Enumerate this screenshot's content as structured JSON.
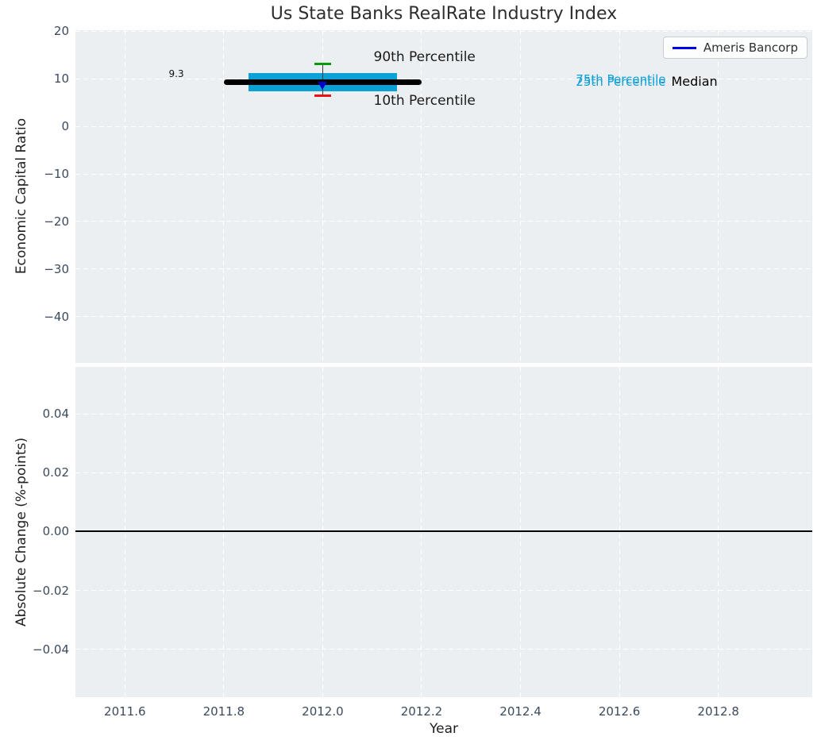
{
  "figure": {
    "title": "Us State Banks RealRate Industry Index",
    "background": "#ffffff",
    "axes_background": "#eceff1",
    "grid_color": "#ffffff",
    "tick_color": "#3b4a5c"
  },
  "legend": {
    "label": "Ameris Bancorp",
    "line_color": "#0000e6",
    "position": "upper right"
  },
  "chart_data": [
    {
      "type": "boxplot",
      "title": "Us State Banks RealRate Industry Index",
      "ylabel": "Economic Capital Ratio",
      "xlabel": "",
      "grid": true,
      "xlim": [
        2011.5,
        2012.99
      ],
      "ylim": [
        -49.7,
        20.2
      ],
      "xticks": {
        "values": [
          2011.6,
          2011.8,
          2012.0,
          2012.2,
          2012.4,
          2012.6,
          2012.8
        ],
        "labels": [
          "2011.6",
          "2011.8",
          "2012.0",
          "2012.2",
          "2012.4",
          "2012.6",
          "2012.8"
        ],
        "labels_visible": false
      },
      "yticks": {
        "values": [
          20,
          10,
          0,
          -10,
          -20,
          -30,
          -40
        ],
        "labels": [
          "20",
          "10",
          "0",
          "−10",
          "−20",
          "−30",
          "−40"
        ]
      },
      "box": {
        "x": 2012.0,
        "median": 9.3,
        "q1": 7.3,
        "q3": 11.2,
        "p10": 6.5,
        "p90": 13.1,
        "box_x_start": 2011.85,
        "box_x_end": 2012.15,
        "median_x_start": 2011.8,
        "median_x_end": 2012.2,
        "cap_half_width": 0.017,
        "box_color": "#0aa1d7",
        "median_color": "#000000",
        "median_linewidth": 7,
        "p90_cap_color": "#0a9a0a",
        "p10_cap_color": "#ee1111",
        "whisker_color": "#3a3a3a"
      },
      "series": [
        {
          "name": "Ameris Bancorp",
          "color": "#0000cd",
          "marker": "triangle-down",
          "points": [
            {
              "x": 2012.0,
              "y": 8.5
            }
          ]
        }
      ],
      "annotations": [
        {
          "text": "9.3",
          "x": 2011.704,
          "y": 11.1,
          "anchor": "middle",
          "size": 12,
          "color": "#111111"
        },
        {
          "text": "90th Percentile",
          "x": 2012.103,
          "y": 14.5,
          "anchor": "start",
          "size": 17,
          "color": "#1a1a1a"
        },
        {
          "text": "10th Percentile",
          "x": 2012.103,
          "y": 5.2,
          "anchor": "start",
          "size": 17,
          "color": "#1a1a1a"
        },
        {
          "text": "75th Percentile",
          "x": 2012.512,
          "y": 9.85,
          "anchor": "start",
          "size": 15,
          "color": "#12a0d7"
        },
        {
          "text": "25th Percentile",
          "x": 2012.512,
          "y": 9.2,
          "anchor": "start",
          "size": 15,
          "color": "#12a0d7"
        },
        {
          "text": "Median",
          "x": 2012.705,
          "y": 9.3,
          "anchor": "start",
          "size": 16,
          "color": "#000000"
        }
      ]
    },
    {
      "type": "line",
      "ylabel": "Absolute Change (%-points)",
      "xlabel": "Year",
      "grid": true,
      "xlim": [
        2011.5,
        2012.99
      ],
      "ylim": [
        -0.0562,
        0.0559
      ],
      "xticks": {
        "values": [
          2011.6,
          2011.8,
          2012.0,
          2012.2,
          2012.4,
          2012.6,
          2012.8
        ],
        "labels": [
          "2011.6",
          "2011.8",
          "2012.0",
          "2012.2",
          "2012.4",
          "2012.6",
          "2012.8"
        ],
        "labels_visible": true
      },
      "yticks": {
        "values": [
          0.04,
          0.02,
          0.0,
          -0.02,
          -0.04
        ],
        "labels": [
          "0.04",
          "0.02",
          "0.00",
          "−0.02",
          "−0.04"
        ]
      },
      "zero_line": {
        "y": 0,
        "color": "#000000",
        "linewidth": 2
      },
      "series": []
    }
  ]
}
